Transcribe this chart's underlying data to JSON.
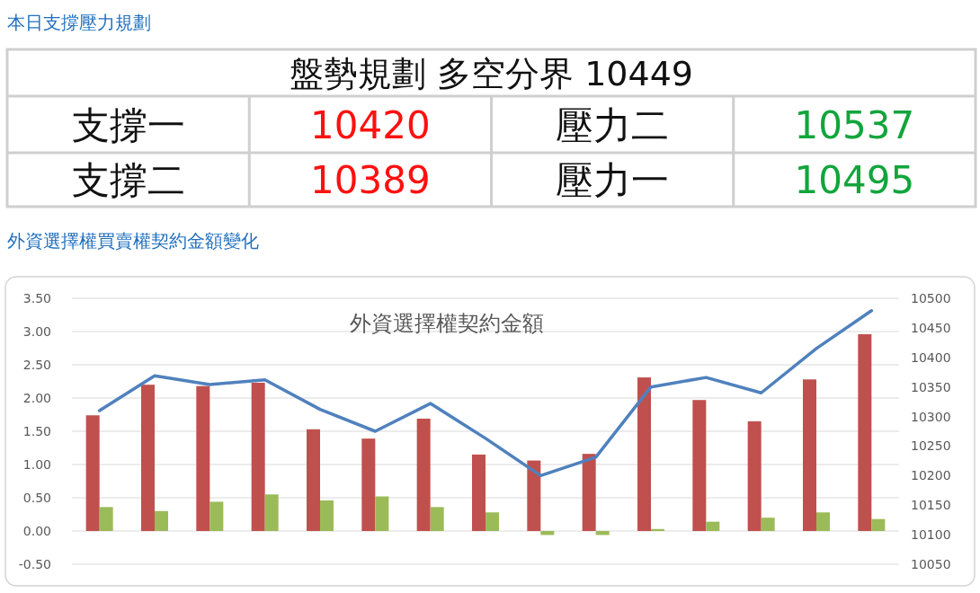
{
  "chart_data": [
    {
      "type": "other",
      "title": "本日支撐壓力規劃",
      "annotations": [
        "盤勢規劃 多空分界 10449",
        "支撐一",
        "10420",
        "壓力二",
        "10537",
        "支撐二",
        "10389",
        "壓力一",
        "10495"
      ]
    },
    {
      "type": "bar",
      "title": "外資選擇權契約金額",
      "subtitle": "外資選擇權買賣權契約金額變化",
      "categories": [
        null,
        null,
        null,
        null,
        null,
        null,
        null,
        null,
        null,
        null,
        null,
        null,
        null,
        null,
        null
      ],
      "series": [
        {
          "type": "bar",
          "color": "#c0504d",
          "values": [
            1.74,
            2.2,
            2.18,
            2.23,
            1.53,
            1.39,
            1.69,
            1.15,
            1.06,
            1.16,
            2.31,
            1.97,
            1.65,
            2.28,
            2.96
          ]
        },
        {
          "type": "bar",
          "color": "#9bbb59",
          "values": [
            0.36,
            0.3,
            0.44,
            0.55,
            0.46,
            0.52,
            0.36,
            0.28,
            -0.06,
            -0.06,
            0.03,
            0.14,
            0.2,
            0.28,
            0.18
          ]
        },
        {
          "type": "line",
          "axis": "y2",
          "color": "#4f81bd",
          "values": [
            10310,
            10369,
            10354,
            10362,
            10312,
            10275,
            10322,
            10263,
            10200,
            10231,
            10350,
            10366,
            10340,
            10415,
            10479
          ]
        }
      ],
      "ylim": [
        -0.5,
        3.5
      ],
      "yticks": [
        {
          "value": -0.5,
          "label": "-0.50"
        },
        {
          "value": 0,
          "label": "0.00"
        },
        {
          "value": 0.5,
          "label": "0.50"
        },
        {
          "value": 1,
          "label": "1.00"
        },
        {
          "value": 1.5,
          "label": "1.50"
        },
        {
          "value": 2,
          "label": "2.00"
        },
        {
          "value": 2.5,
          "label": "2.50"
        },
        {
          "value": 3,
          "label": "3.00"
        },
        {
          "value": 3.5,
          "label": "3.50"
        }
      ],
      "y2lim": [
        10050,
        10500
      ],
      "y2ticks": [
        10050,
        10100,
        10150,
        10200,
        10250,
        10300,
        10350,
        10400,
        10450,
        10500
      ],
      "grid": "y"
    }
  ]
}
